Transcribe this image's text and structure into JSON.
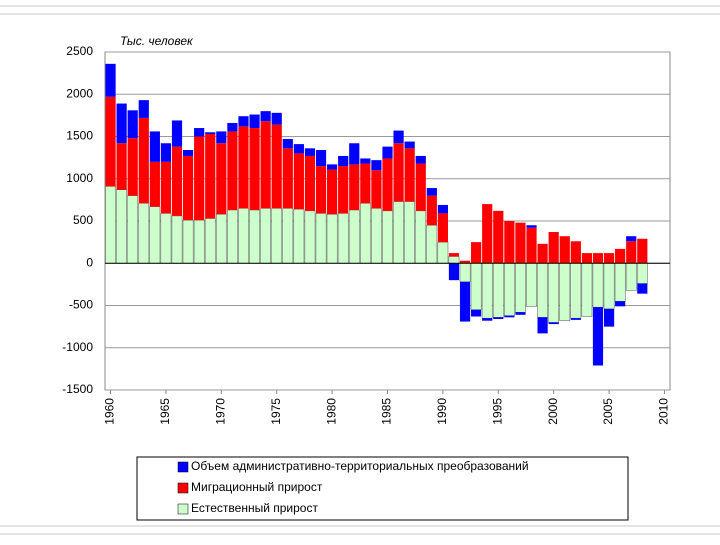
{
  "chart_data": {
    "type": "stacked-bar",
    "ylabel": "Тыс. человек",
    "x": [
      1960,
      1961,
      1962,
      1963,
      1964,
      1965,
      1966,
      1967,
      1968,
      1969,
      1970,
      1971,
      1972,
      1973,
      1974,
      1975,
      1976,
      1977,
      1978,
      1979,
      1980,
      1981,
      1982,
      1983,
      1984,
      1985,
      1986,
      1987,
      1988,
      1989,
      1990,
      1991,
      1992,
      1993,
      1994,
      1995,
      1996,
      1997,
      1998,
      1999,
      2000,
      2001,
      2002,
      2003,
      2004,
      2005,
      2006,
      2007,
      2008
    ],
    "series": [
      {
        "name": "Естественный прирост",
        "color": "#ccffcc",
        "values": [
          910,
          870,
          800,
          710,
          670,
          590,
          560,
          510,
          510,
          530,
          580,
          630,
          650,
          630,
          650,
          650,
          650,
          640,
          620,
          590,
          580,
          590,
          630,
          710,
          650,
          620,
          730,
          730,
          620,
          450,
          250,
          80,
          -220,
          -550,
          -650,
          -640,
          -620,
          -580,
          -510,
          -640,
          -700,
          -680,
          -650,
          -630,
          -520,
          -540,
          -450,
          -320,
          -240
        ]
      },
      {
        "name": "Миграционный прирост",
        "color": "#ff0000",
        "values": [
          1060,
          550,
          680,
          1010,
          530,
          610,
          820,
          760,
          990,
          1000,
          840,
          930,
          970,
          970,
          1030,
          990,
          710,
          660,
          650,
          560,
          530,
          560,
          540,
          470,
          450,
          620,
          690,
          630,
          560,
          350,
          340,
          40,
          30,
          250,
          700,
          620,
          500,
          480,
          420,
          230,
          370,
          320,
          260,
          120,
          120,
          120,
          170,
          260,
          290
        ]
      },
      {
        "name": "Объем административно-территориальных преобразований",
        "color": "#0000ff",
        "values": [
          390,
          470,
          330,
          210,
          360,
          220,
          310,
          70,
          100,
          20,
          140,
          100,
          120,
          160,
          120,
          140,
          110,
          110,
          90,
          190,
          60,
          120,
          250,
          60,
          120,
          140,
          150,
          80,
          90,
          90,
          100,
          -200,
          -470,
          -80,
          -30,
          -20,
          -20,
          -30,
          30,
          -190,
          -20,
          0,
          -20,
          0,
          -690,
          -210,
          -60,
          60,
          -120
        ]
      }
    ],
    "xlim": [
      1959.5,
      2010.5
    ],
    "xticks": [
      1960,
      1965,
      1970,
      1975,
      1980,
      1985,
      1990,
      1995,
      2000,
      2005,
      2010
    ],
    "ylim": [
      -1500,
      2500
    ],
    "yticks": [
      -1500,
      -1000,
      -500,
      0,
      500,
      1000,
      1500,
      2000,
      2500
    ],
    "grid": true
  }
}
